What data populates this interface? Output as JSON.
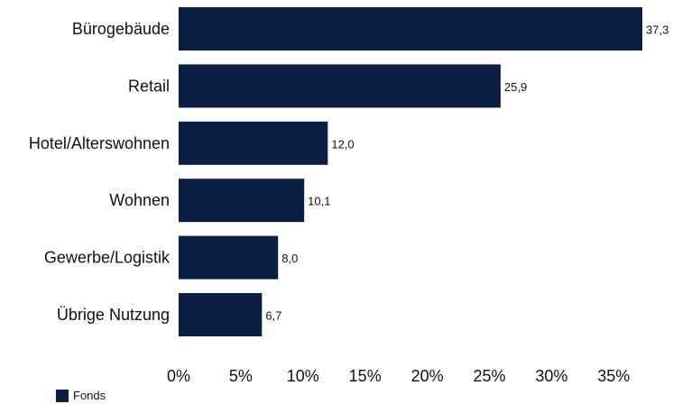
{
  "chart_data": {
    "type": "bar",
    "orientation": "horizontal",
    "categories": [
      "Bürogebäude",
      "Retail",
      "Hotel/Alterswohnen",
      "Wohnen",
      "Gewerbe/Logistik",
      "Übrige Nutzung"
    ],
    "series": [
      {
        "name": "Fonds",
        "values": [
          37.3,
          25.9,
          12.0,
          10.1,
          8.0,
          6.7
        ],
        "value_labels": [
          "37,3",
          "25,9",
          "12,0",
          "10,1",
          "8,0",
          "6,7"
        ]
      }
    ],
    "x_ticks": [
      "0%",
      "5%",
      "10%",
      "15%",
      "20%",
      "25%",
      "30%",
      "35%"
    ],
    "xlim": [
      0,
      37.3
    ],
    "title": "",
    "xlabel": "",
    "ylabel": "",
    "grid": false,
    "legend_position": "bottom-left",
    "bar_color": "#0b1f44"
  },
  "legend": {
    "label": "Fonds"
  }
}
